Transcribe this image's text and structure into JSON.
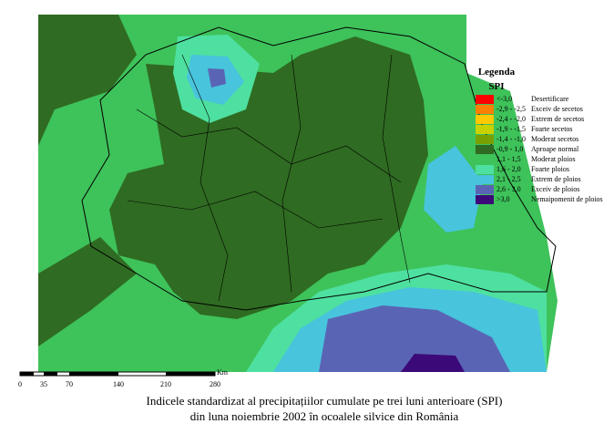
{
  "legend": {
    "title": "Legenda",
    "subtitle": "SPI",
    "items": [
      {
        "range": "<-3,0",
        "label": "Desertificare",
        "color": "#ff0000"
      },
      {
        "range": "-2,9 - -2,5",
        "label": "Exceiv de secetos",
        "color": "#ff7f00"
      },
      {
        "range": "-2,4 - -2,0",
        "label": "Extrem de secetos",
        "color": "#ffc800"
      },
      {
        "range": "-1,9 - -1,5",
        "label": "Foarte secetos",
        "color": "#c8d200"
      },
      {
        "range": "-1,4 - -1,0",
        "label": "Moderat secetos",
        "color": "#78a000"
      },
      {
        "range": "-0,9 - 1,0",
        "label": "Aproape normal",
        "color": "#2f6b22"
      },
      {
        "range": "1,1 - 1,5",
        "label": "Moderat ploios",
        "color": "#3ec25a"
      },
      {
        "range": "1,6 - 2,0",
        "label": "Foarte ploios",
        "color": "#4ee0a0"
      },
      {
        "range": "2,1 - 2,5",
        "label": "Extrem de ploios",
        "color": "#48c4dc"
      },
      {
        "range": "2,6 - 3,0",
        "label": "Exceiv de ploios",
        "color": "#5a64b4"
      },
      {
        "range": ">3,0",
        "label": "Nemaipomenit de ploios",
        "color": "#3c0a78"
      }
    ]
  },
  "scale_bar": {
    "labels": [
      "0",
      "35",
      "70",
      "140",
      "210",
      "280"
    ],
    "unit": "Km"
  },
  "caption": {
    "line1": "Indicele standardizat al precipitațiilor cumulate pe trei luni anterioare (SPI)",
    "line2": "din luna noiembrie 2002 în ocoalele silvice din România"
  }
}
